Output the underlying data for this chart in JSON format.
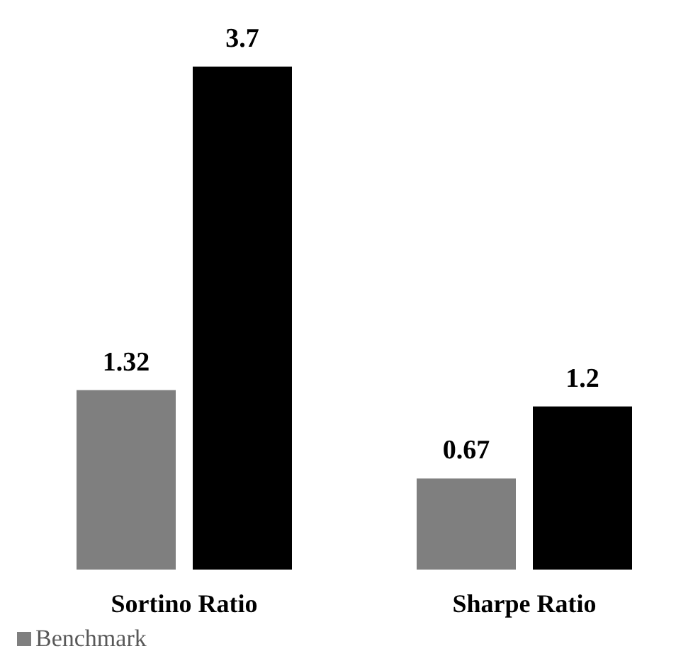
{
  "chart_data": {
    "type": "bar",
    "categories": [
      "Sortino Ratio",
      "Sharpe Ratio"
    ],
    "series": [
      {
        "name": "Benchmark",
        "color": "#7f7f7f",
        "values": [
          1.32,
          0.67
        ]
      },
      {
        "color": "#000000",
        "values": [
          3.7,
          1.2
        ]
      }
    ],
    "data_labels": true,
    "legend": "bottom",
    "grid": false
  }
}
